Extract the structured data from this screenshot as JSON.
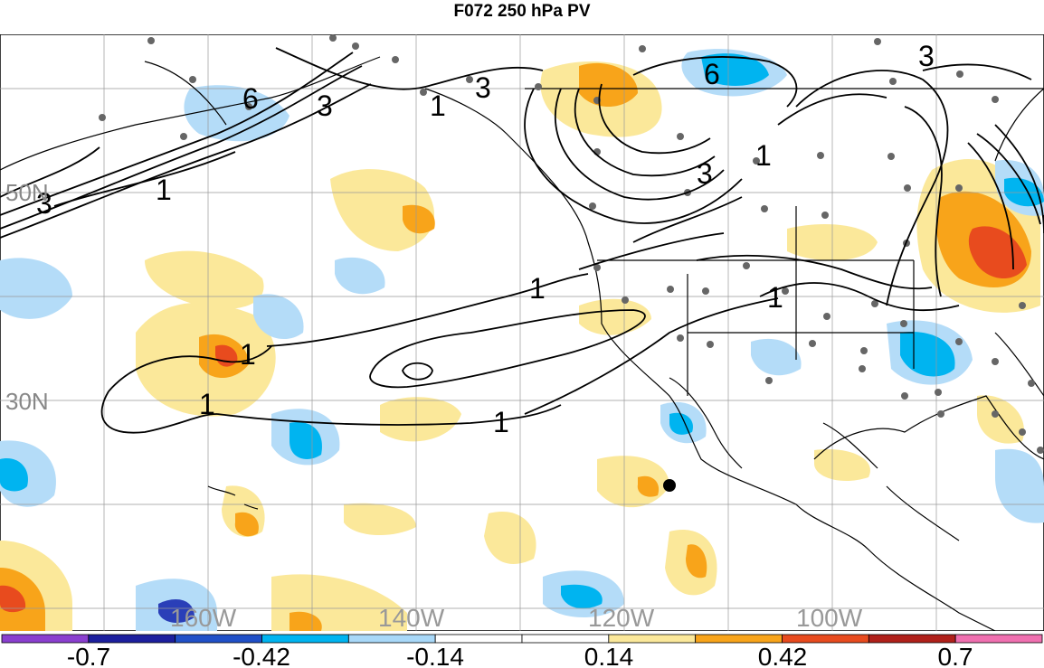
{
  "title": "F072 250 hPa PV",
  "map": {
    "lat_labels": [
      "50N",
      "30N"
    ],
    "lon_labels": [
      "160W",
      "140W",
      "120W",
      "100W"
    ],
    "contour_labels": [
      "3",
      "6",
      "3",
      "1",
      "1",
      "3",
      "6",
      "3",
      "1",
      "1",
      "1",
      "1",
      "1",
      "1",
      "3"
    ],
    "shading_colors": {
      "neg_strong": "#2a3fb8",
      "neg_mid": "#00b4f0",
      "neg_light": "#b4dcf8",
      "pos_light": "#fbe89a",
      "pos_mid": "#f8a41a",
      "pos_strong": "#e84b1e"
    }
  },
  "colorbar": {
    "labels": [
      "-0.7",
      "-0.42",
      "-0.14",
      "0.14",
      "0.42",
      "0.7"
    ],
    "colors": [
      "#8a3fcf",
      "#1c1f9e",
      "#2050c8",
      "#00b4f0",
      "#a8d8f8",
      "#ffffff",
      "#ffffff",
      "#fbe89a",
      "#f8a41a",
      "#e84b1e",
      "#b0201a",
      "#f070b0"
    ]
  }
}
